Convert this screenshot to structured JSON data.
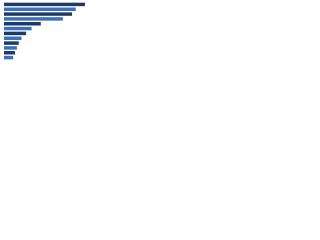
{
  "chart_data": {
    "type": "bar",
    "orientation": "horizontal",
    "categories": [
      null,
      null,
      null,
      null,
      null,
      null,
      null,
      null,
      null,
      null,
      null,
      null
    ],
    "values": [
      88,
      78,
      74,
      64,
      40,
      30,
      24,
      19,
      16,
      14,
      12,
      10
    ],
    "colors": [
      "#1f3a68",
      "#3a6fc4",
      "#1f3a68",
      "#3a6fc4",
      "#1f3a68",
      "#3a6fc4",
      "#1f3a68",
      "#3a6fc4",
      "#1f3a68",
      "#3a6fc4",
      "#1f3a68",
      "#3a6fc4"
    ],
    "xlim": [
      0,
      100
    ]
  }
}
